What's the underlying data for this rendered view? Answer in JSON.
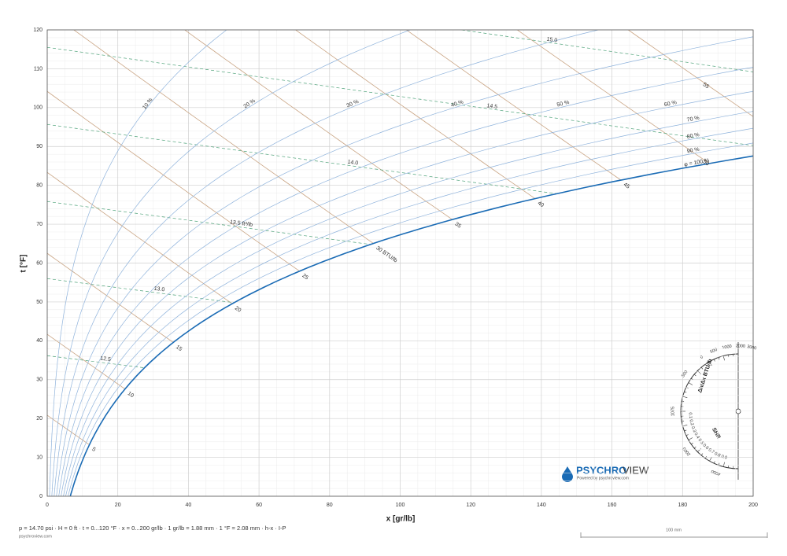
{
  "chart_data": {
    "type": "psychrometric",
    "xlabel": "x [gr/lb]",
    "ylabel": "t [°F]",
    "xlim": [
      0,
      200
    ],
    "ylim": [
      0,
      120
    ],
    "xticks": [
      0,
      20,
      40,
      60,
      80,
      100,
      120,
      140,
      160,
      180,
      200
    ],
    "yticks": [
      0,
      10,
      20,
      30,
      40,
      50,
      60,
      70,
      80,
      90,
      100,
      110,
      120
    ],
    "grid": true,
    "rh_lines": {
      "values": [
        10,
        20,
        30,
        40,
        50,
        60,
        70,
        80,
        90,
        100
      ],
      "value_labels": [
        "10 %",
        "20 %",
        "30 %",
        "40 %",
        "50 %",
        "60 %",
        "70 %",
        "80 %",
        "90 %",
        "φ = 100 %"
      ],
      "color": "#8fb3dc",
      "saturation_color": "#1a6bb5",
      "label_color": "#3a6fb0"
    },
    "enthalpy_lines": {
      "values": [
        5,
        10,
        15,
        20,
        25,
        30,
        35,
        40,
        45,
        50,
        55
      ],
      "value_labels": [
        "5",
        "10",
        "15",
        "20",
        "25",
        "30 BTU/lb",
        "35",
        "40",
        "45",
        "50",
        "55"
      ],
      "color": "#c9a483",
      "label_color": "#c0651e"
    },
    "volume_lines": {
      "values": [
        12.5,
        13.0,
        13.5,
        14.0,
        14.5,
        15.0
      ],
      "value_labels": [
        "12.5",
        "13.0",
        "13.5 ft³/lb",
        "14.0",
        "14.5",
        "15.0"
      ],
      "color": "#4fa37a",
      "label_color": "#2e8b57"
    },
    "footer": "p = 14.70 psi · H = 0 ft · t = 0...120 °F · x = 0...200 gr/lb · 1 gr/lb = 1.88 mm · 1 °F = 2.08 mm · h-x · I-P"
  },
  "site": "psychroview.com",
  "brand": {
    "name_a": "PSYCHRO",
    "name_b": "VIEW",
    "tagline": "Powered by psychroview.com"
  },
  "protractor": {
    "title": "Δh/Δx BTU/lb",
    "shr_title": "SHR",
    "ratio_labels": [
      "3000",
      "2000",
      "1000",
      "500",
      "0",
      "500",
      "1075",
      "2000",
      "4000"
    ],
    "shr_labels": [
      "0.1",
      "0.2",
      "0.3",
      "0.4",
      "0.5",
      "0.6",
      "0.7",
      "0.8",
      "0.9"
    ]
  },
  "scale_bar": "100 mm"
}
